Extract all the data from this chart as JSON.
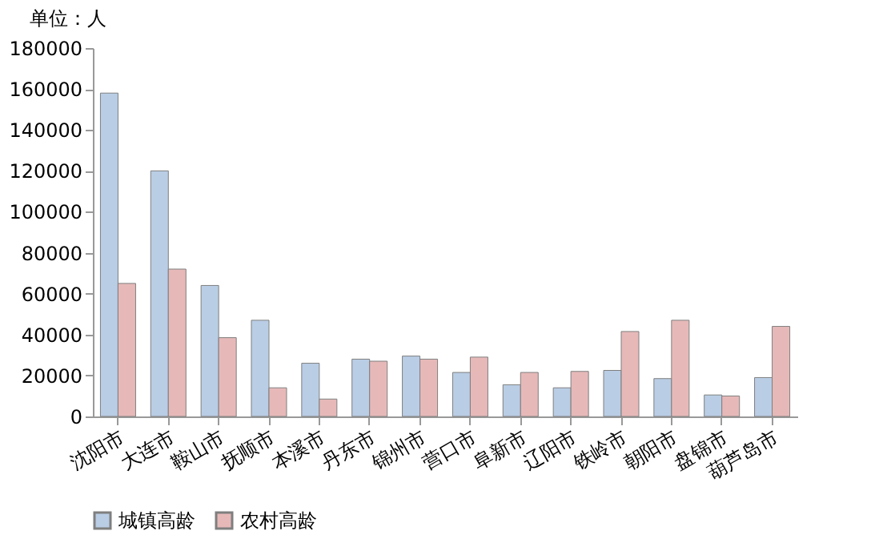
{
  "chart_data": {
    "type": "bar",
    "ylabel": "单位：人",
    "categories": [
      "沈阳市",
      "大连市",
      "鞍山市",
      "抚顺市",
      "本溪市",
      "丹东市",
      "锦州市",
      "营口市",
      "阜新市",
      "辽阳市",
      "铁岭市",
      "朝阳市",
      "盘锦市",
      "葫芦岛市"
    ],
    "series": [
      {
        "name": "城镇高龄",
        "color": "#b9cde5",
        "values": [
          158000,
          120000,
          64000,
          47000,
          26000,
          28000,
          29500,
          21500,
          15500,
          14000,
          22500,
          18500,
          10500,
          19000
        ]
      },
      {
        "name": "农村高龄",
        "color": "#e6b9b8",
        "values": [
          65000,
          72000,
          38500,
          14000,
          8500,
          27000,
          28000,
          29000,
          21500,
          22000,
          41500,
          47000,
          10000,
          44000
        ]
      }
    ],
    "ylim": [
      0,
      180000
    ],
    "yticks": [
      0,
      20000,
      40000,
      60000,
      80000,
      100000,
      120000,
      140000,
      160000,
      180000
    ],
    "grid": false,
    "legend": "bottom"
  }
}
